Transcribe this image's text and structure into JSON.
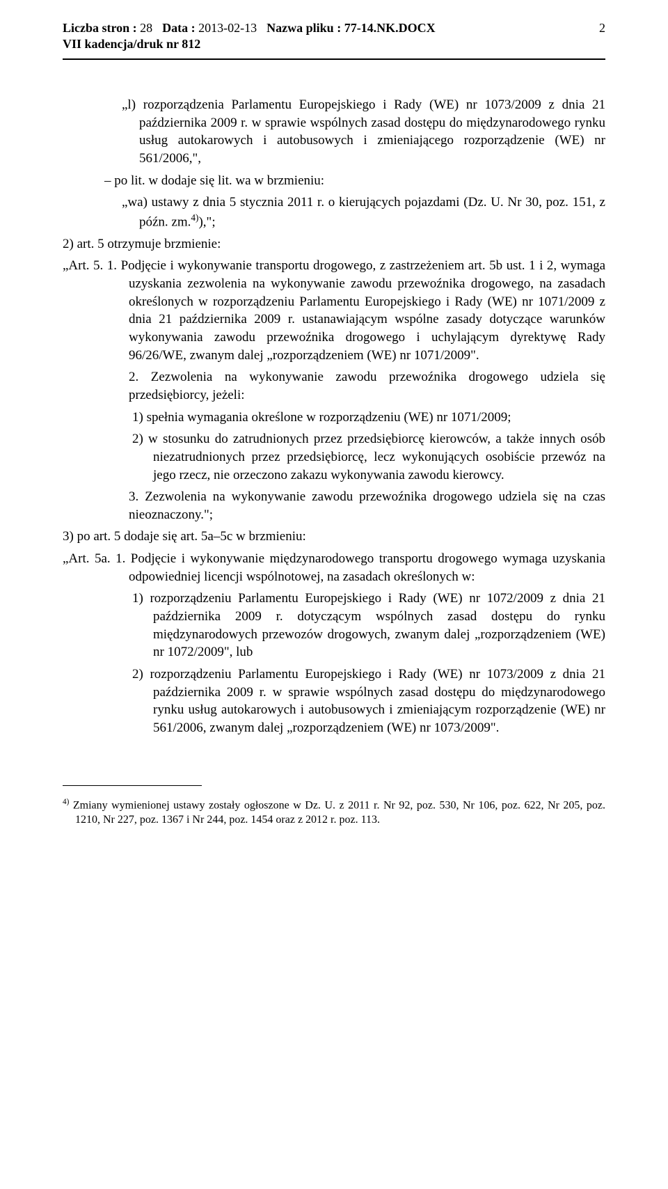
{
  "header": {
    "pages_label": "Liczba stron :",
    "pages_value": "28",
    "date_label": "Data :",
    "date_value": "2013-02-13",
    "filename_label": "Nazwa pliku :",
    "filename_value": "77-14.NK.DOCX",
    "page_number": "2",
    "subtitle": "VII kadencja/druk nr 812"
  },
  "body": {
    "p1": "„l) rozporządzenia Parlamentu Europejskiego i Rady (WE) nr 1073/2009 z dnia 21 października 2009 r. w sprawie wspólnych zasad dostępu do międzynarodowego rynku usług autokarowych i autobusowych i zmieniającego rozporządzenie (WE) nr 561/2006,\",",
    "p2": "– po lit. w dodaje się lit. wa w brzmieniu:",
    "p3": "„wa) ustawy z dnia 5 stycznia 2011 r. o kierujących pojazdami (Dz. U. Nr 30, poz. 151, z późn. zm.",
    "p3_sup": "4)",
    "p3_end": "),\";",
    "p4": "2) art. 5 otrzymuje brzmienie:",
    "art5_1": "„Art. 5. 1. Podjęcie i wykonywanie transportu drogowego, z zastrzeżeniem art. 5b ust. 1 i 2, wymaga uzyskania zezwolenia na wykonywanie zawodu przewoźnika drogowego, na zasadach określonych w rozporządzeniu Parlamentu Europejskiego i Rady (WE) nr 1071/2009 z dnia 21 października 2009 r. ustanawiającym wspólne zasady dotyczące warunków wykonywania zawodu przewoźnika drogowego i uchylającym dyrektywę Rady 96/26/WE, zwanym dalej „rozporządzeniem (WE) nr 1071/2009\".",
    "art5_2": "2. Zezwolenia na wykonywanie zawodu przewoźnika drogowego udziela się przedsiębiorcy, jeżeli:",
    "art5_2_1": "1) spełnia wymagania określone w rozporządzeniu (WE) nr 1071/2009;",
    "art5_2_2": "2) w stosunku do zatrudnionych przez przedsiębiorcę kierowców, a także innych osób niezatrudnionych przez przedsiębiorcę, lecz wykonujących osobiście przewóz na jego rzecz, nie orzeczono zakazu wykonywania zawodu kierowcy.",
    "art5_3": "3. Zezwolenia na wykonywanie zawodu przewoźnika drogowego udziela się na czas nieoznaczony.\";",
    "p6": "3) po art. 5 dodaje się art. 5a–5c w brzmieniu:",
    "art5a_1": "„Art. 5a. 1. Podjęcie i wykonywanie międzynarodowego transportu drogowego wymaga uzyskania odpowiedniej licencji wspólnotowej, na zasadach określonych w:",
    "art5a_1_1": "1) rozporządzeniu Parlamentu Europejskiego i Rady (WE) nr 1072/2009 z dnia 21 października 2009 r. dotyczącym wspólnych zasad dostępu do rynku międzynarodowych przewozów drogowych, zwanym dalej „rozporządzeniem (WE) nr 1072/2009\", lub",
    "art5a_1_2": "2) rozporządzeniu Parlamentu Europejskiego i Rady (WE) nr 1073/2009 z dnia 21 października 2009 r. w sprawie wspólnych zasad dostępu do międzynarodowego rynku usług autokarowych i autobusowych i zmieniającym rozporządzenie (WE) nr 561/2006, zwanym dalej „rozporządzeniem (WE) nr 1073/2009\"."
  },
  "footnote": {
    "marker": "4)",
    "text": "Zmiany wymienionej ustawy zostały ogłoszone w Dz. U. z 2011 r. Nr 92, poz. 530, Nr 106, poz. 622, Nr 205, poz. 1210, Nr 227, poz. 1367 i Nr 244, poz. 1454 oraz z 2012 r. poz. 113."
  }
}
